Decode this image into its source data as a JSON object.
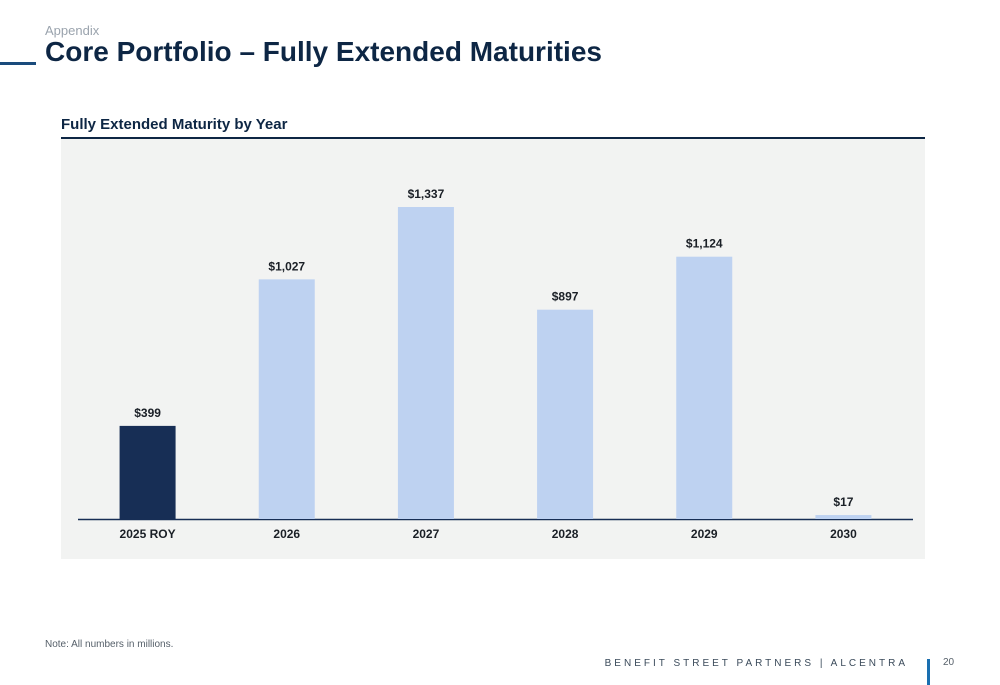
{
  "header": {
    "section": "Appendix",
    "title": "Core Portfolio – Fully Extended Maturities"
  },
  "chart_heading": "Fully Extended Maturity by Year",
  "chart_data": {
    "type": "bar",
    "title": "Fully Extended Maturity by Year",
    "categories": [
      "2025 ROY",
      "2026",
      "2027",
      "2028",
      "2029",
      "2030"
    ],
    "values": [
      399,
      1027,
      1337,
      897,
      1124,
      17
    ],
    "data_labels": [
      "$399",
      "$1,027",
      "$1,337",
      "$897",
      "$1,124",
      "$17"
    ],
    "ylim": [
      0,
      1500
    ],
    "grid": false,
    "colors": {
      "highlight": "#172e55",
      "default": "#bed2f1",
      "baseline": "#172e55"
    },
    "highlight_index": 0
  },
  "note": "Note: All numbers in millions.",
  "footer": {
    "brand": "BENEFIT STREET PARTNERS | ALCENTRA",
    "page": "20"
  }
}
